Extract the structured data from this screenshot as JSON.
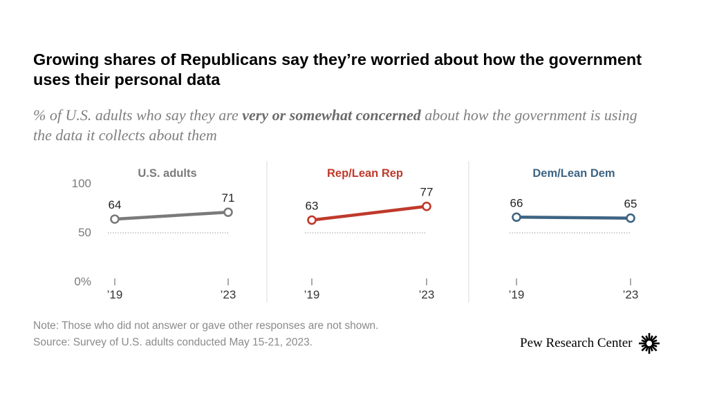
{
  "title": "Growing shares of Republicans say they’re worried about how the government uses their personal data",
  "subtitle": {
    "before": "% of U.S. adults who say they are ",
    "emphasis": "very or somewhat concerned",
    "after": " about how the government is using the data it collects about them"
  },
  "chart_data": {
    "type": "line",
    "y_axis_labels": [
      "100",
      "50",
      "0%"
    ],
    "y_ticks": [
      100,
      50,
      0
    ],
    "ylim": [
      0,
      100
    ],
    "x_labels": [
      "’19",
      "’23"
    ],
    "panels": [
      {
        "name": "U.S. adults",
        "color": "#7a7a7a",
        "values": [
          64,
          71
        ]
      },
      {
        "name": "Rep/Lean Rep",
        "color": "#c0392b",
        "values": [
          63,
          77
        ]
      },
      {
        "name": "Dem/Lean Dem",
        "color": "#3e6483",
        "values": [
          66,
          65
        ]
      }
    ]
  },
  "note": "Note: Those who did not answer or gave other responses are not shown.",
  "source": "Source: Survey of U.S. adults conducted May 15-21, 2023.",
  "brand": "Pew Research Center"
}
